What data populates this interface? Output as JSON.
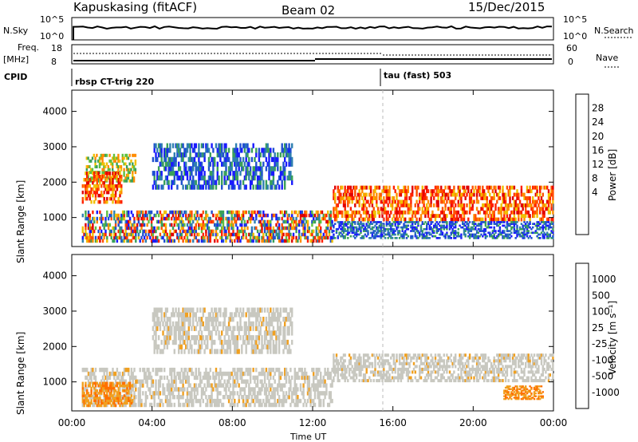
{
  "header": {
    "station": "Kapuskasing (fitACF)",
    "beam": "Beam 02",
    "date": "15/Dec/2015"
  },
  "top_panels": {
    "nsky_label": "N.Sky",
    "nsky_ticks": [
      "10^5",
      "10^0"
    ],
    "nsearch_label": "N.Search",
    "nsearch_ticks": [
      "10^5",
      "10^0"
    ],
    "freq_label_1": "Freq.",
    "freq_label_2": "[MHz]",
    "freq_ticks": [
      "18",
      "8"
    ],
    "nave_label": "Nave",
    "nave_ticks": [
      "60",
      "0"
    ],
    "cpid_label": "CPID",
    "cpid_modes": [
      {
        "label": "rbsp CT-trig 220",
        "start_hour": 0
      },
      {
        "label": "tau (fast) 503",
        "start_hour": 15.7
      }
    ]
  },
  "chart_data": [
    {
      "type": "heatmap",
      "panel": "power",
      "ylabel": "Slant Range [km]",
      "xlabel": "",
      "xlim_hours": [
        0,
        24
      ],
      "ylim_km": [
        180,
        4600
      ],
      "yticks": [
        1000,
        2000,
        3000,
        4000
      ],
      "colorbar": {
        "label": "Power [dB]",
        "ticks": [
          "28",
          "24",
          "20",
          "16",
          "12",
          "8",
          "4"
        ],
        "colors": [
          "#1a1aff",
          "#2050d0",
          "#2e7fb0",
          "#3aa05a",
          "#60c040",
          "#f0c000",
          "#ff8c00",
          "#ff5000",
          "#ff2000",
          "#e00000"
        ]
      },
      "regions": [
        {
          "t0": 0.7,
          "t1": 3.2,
          "r0": 2000,
          "r1": 2800,
          "level": "mid"
        },
        {
          "t0": 0.5,
          "t1": 2.5,
          "r0": 1400,
          "r1": 2300,
          "level": "high"
        },
        {
          "t0": 0.5,
          "t1": 13.0,
          "r0": 300,
          "r1": 1200,
          "level": "mixed"
        },
        {
          "t0": 4.0,
          "t1": 11.0,
          "r0": 1800,
          "r1": 3100,
          "level": "low"
        },
        {
          "t0": 13.0,
          "t1": 24.0,
          "r0": 900,
          "r1": 1900,
          "level": "high"
        },
        {
          "t0": 13.0,
          "t1": 24.0,
          "r0": 400,
          "r1": 900,
          "level": "low"
        }
      ]
    },
    {
      "type": "heatmap",
      "panel": "velocity",
      "ylabel": "Slant Range [km]",
      "xlabel": "Time UT",
      "xlim_hours": [
        0,
        24
      ],
      "ylim_km": [
        180,
        4600
      ],
      "yticks": [
        1000,
        2000,
        3000,
        4000
      ],
      "xticks": [
        "00:00",
        "04:00",
        "08:00",
        "12:00",
        "16:00",
        "20:00",
        "00:00"
      ],
      "colorbar": {
        "label": "Velocity [m s⁻¹]",
        "ticks": [
          "1000",
          "500",
          "100",
          "25",
          "-25",
          "-100",
          "-500",
          "-1000"
        ],
        "colors": [
          "#2040c0",
          "#3070a0",
          "#40a070",
          "#60c040",
          "#c8c8c0",
          "#f0a020",
          "#ff7000",
          "#ff3000",
          "#e00000"
        ]
      },
      "regions": [
        {
          "t0": 0.5,
          "t1": 13.0,
          "r0": 300,
          "r1": 1400,
          "level": "ground"
        },
        {
          "t0": 4.0,
          "t1": 11.0,
          "r0": 1800,
          "r1": 3100,
          "level": "ground"
        },
        {
          "t0": 13.0,
          "t1": 24.0,
          "r0": 1000,
          "r1": 1800,
          "level": "ground"
        },
        {
          "t0": 0.5,
          "t1": 3.0,
          "r0": 300,
          "r1": 1000,
          "level": "negative"
        },
        {
          "t0": 21.5,
          "t1": 23.5,
          "r0": 500,
          "r1": 900,
          "level": "negative"
        }
      ]
    }
  ]
}
